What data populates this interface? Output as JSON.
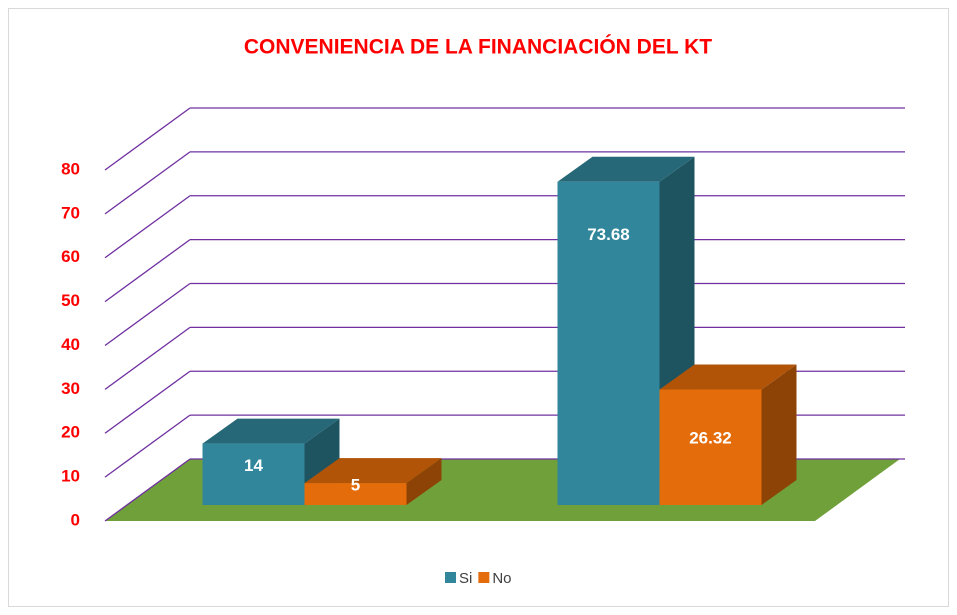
{
  "chart_data": {
    "type": "bar3d",
    "title": "CONVENIENCIA DE LA FINANCIACIÓN DEL KT",
    "categories": [
      null,
      null
    ],
    "series": [
      {
        "name": "Si",
        "color": "#31869b",
        "values": [
          14,
          73.68
        ]
      },
      {
        "name": "No",
        "color": "#e46c0a",
        "values": [
          5,
          26.32
        ]
      }
    ],
    "ylim": [
      0,
      80
    ],
    "yticks": [
      0,
      10,
      20,
      30,
      40,
      50,
      60,
      70,
      80
    ],
    "grid": true,
    "grid_color": "#7030a0",
    "floor_color": "#70a03a",
    "legend": "bottom"
  }
}
